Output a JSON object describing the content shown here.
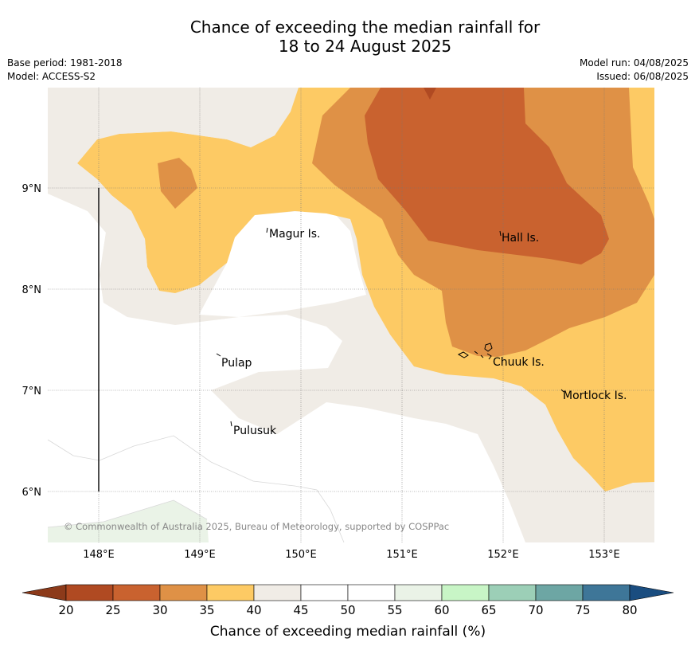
{
  "title": {
    "line1": "Chance of exceeding the median rainfall for",
    "line2": "18 to 24 August 2025"
  },
  "meta": {
    "base_period": "Base period: 1981-2018",
    "model": "Model: ACCESS-S2",
    "model_run": "Model run: 04/08/2025",
    "issued": "Issued: 06/08/2025"
  },
  "map": {
    "lat_labels": [
      "9°N",
      "8°N",
      "7°N",
      "6°N"
    ],
    "lon_labels": [
      "148°E",
      "149°E",
      "150°E",
      "151°E",
      "152°E",
      "153°E"
    ],
    "places": [
      "Magur Is.",
      "Hall Is.",
      "Pulap",
      "Chuuk Is.",
      "Mortlock Is.",
      "Pulusuk"
    ],
    "copyright": "© Commonwealth of Australia 2025, Bureau of Meteorology, supported by COSPPac"
  },
  "legend": {
    "title": "Chance of exceeding median rainfall (%)",
    "ticks": [
      "20",
      "25",
      "30",
      "35",
      "40",
      "45",
      "50",
      "55",
      "60",
      "65",
      "70",
      "75",
      "80"
    ],
    "colors": [
      "#8c3a1a",
      "#b04a22",
      "#c9622f",
      "#df9146",
      "#fdca64",
      "#f0ece6",
      "#ffffff",
      "#ffffff",
      "#eaf3e7",
      "#c8f5c6",
      "#9ccfb7",
      "#6da6a4",
      "#3e7698",
      "#1a4d80"
    ]
  }
}
